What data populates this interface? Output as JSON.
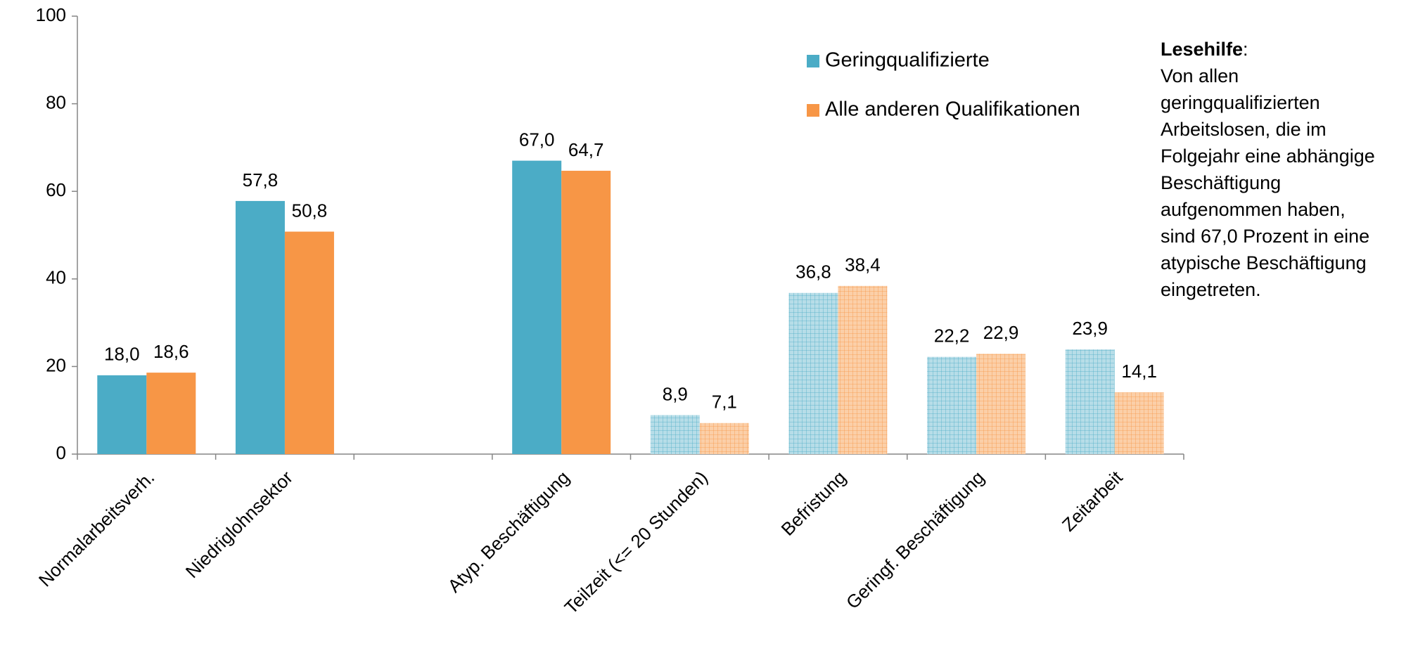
{
  "chart_data": {
    "type": "bar",
    "categories": [
      "Normalarbeitsverh.",
      "Niedriglohnsektor",
      null,
      "Atyp. Beschäftigung",
      "Teilzeit (<= 20 Stunden)",
      "Befristung",
      "Geringf. Beschäftigung",
      "Zeitarbeit"
    ],
    "series": [
      {
        "name": "Geringqualifizierte",
        "color": "#4bacc6",
        "hatch_color": "#b7dde8",
        "values": [
          18.0,
          57.8,
          null,
          67.0,
          8.9,
          36.8,
          22.2,
          23.9
        ],
        "value_labels": [
          "18,0",
          "57,8",
          null,
          "67,0",
          "8,9",
          "36,8",
          "22,2",
          "23,9"
        ]
      },
      {
        "name": "Alle anderen Qualifikationen",
        "color": "#f79646",
        "hatch_color": "#fbcfa8",
        "values": [
          18.6,
          50.8,
          null,
          64.7,
          7.1,
          38.4,
          22.9,
          14.1
        ],
        "value_labels": [
          "18,6",
          "50,8",
          null,
          "64,7",
          "7,1",
          "38,4",
          "22,9",
          "14,1"
        ]
      }
    ],
    "hatched": [
      false,
      false,
      false,
      false,
      true,
      true,
      true,
      true
    ],
    "ylim": [
      0,
      100
    ],
    "yticks": [
      0,
      20,
      40,
      60,
      80,
      100
    ],
    "grid": false,
    "annotation": {
      "heading": "Lesehilfe",
      "heading_suffix": ":",
      "lines": [
        "Von allen",
        "geringqualifizierten",
        "Arbeitslosen, die im",
        "Folgejahr eine abhängige",
        "Beschäftigung",
        "aufgenommen haben,",
        "sind 67,0 Prozent in eine",
        "atypische Beschäftigung",
        "eingetreten."
      ]
    }
  }
}
